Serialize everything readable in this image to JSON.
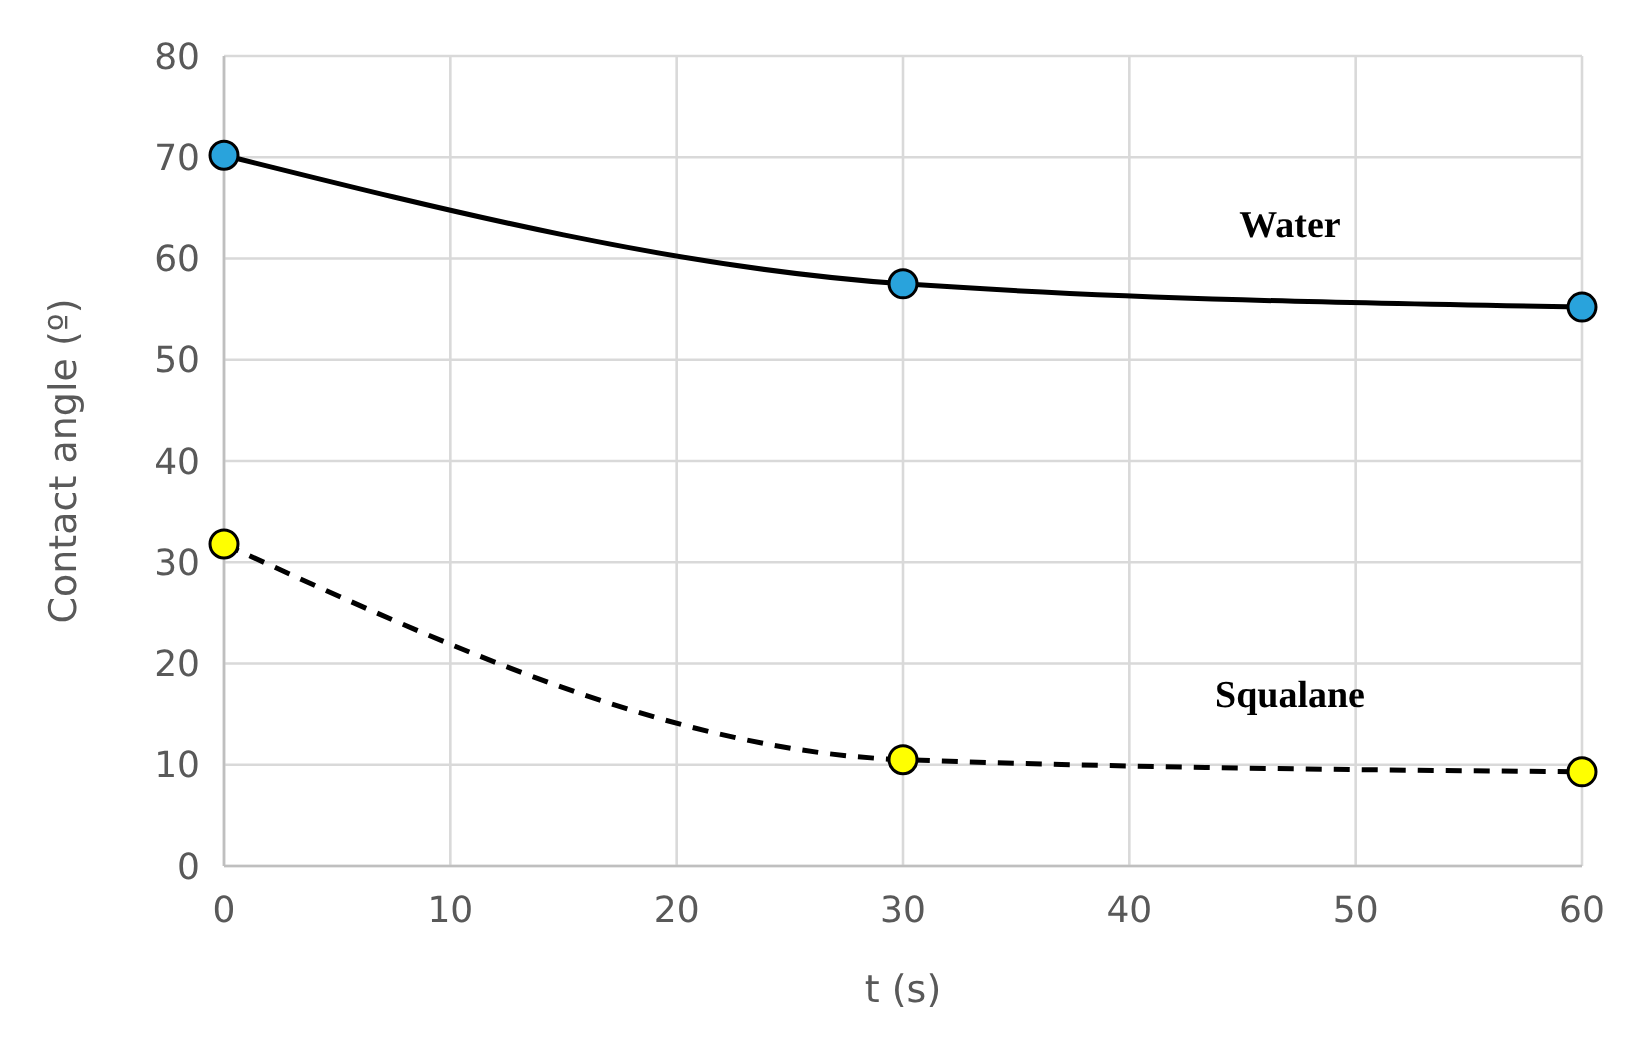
{
  "chart_data": {
    "type": "line",
    "xlabel": "t (s)",
    "ylabel": "Contact angle (º)",
    "xlim": [
      0,
      60
    ],
    "xticks": [
      0,
      10,
      20,
      30,
      40,
      50,
      60
    ],
    "ylim": [
      0,
      80
    ],
    "yticks": [
      0,
      10,
      20,
      30,
      40,
      50,
      60,
      70,
      80
    ],
    "grid": true,
    "marker": "circle",
    "series": [
      {
        "name": "Water",
        "color": "#29a3dc",
        "line_style": "solid",
        "x": [
          0,
          30,
          60
        ],
        "values": [
          70.2,
          57.5,
          55.2
        ]
      },
      {
        "name": "Squalane",
        "color": "#ffff00",
        "line_style": "dashed",
        "x": [
          0,
          30,
          60
        ],
        "values": [
          31.8,
          10.5,
          9.3
        ]
      }
    ]
  }
}
